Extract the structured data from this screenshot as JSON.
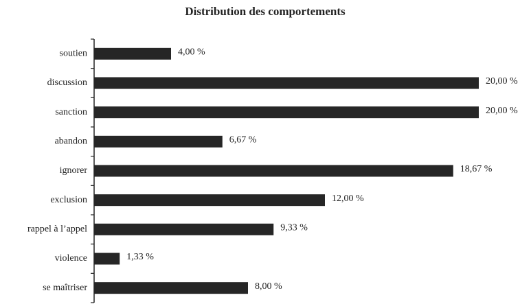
{
  "chart_data": {
    "type": "bar",
    "orientation": "horizontal",
    "title": "Distribution des comportements",
    "categories": [
      "soutien",
      "discussion",
      "sanction",
      "abandon",
      "ignorer",
      "exclusion",
      "rappel à l’appel",
      "violence",
      "se maîtriser"
    ],
    "values": [
      4.0,
      20.0,
      20.0,
      6.67,
      18.67,
      12.0,
      9.33,
      1.33,
      8.0
    ],
    "value_labels": [
      "4,00 %",
      "20,00 %",
      "20,00 %",
      "6,67 %",
      "18,67 %",
      "12,00 %",
      "9,33 %",
      "1,33 %",
      "8,00 %"
    ],
    "color": "#262626"
  }
}
